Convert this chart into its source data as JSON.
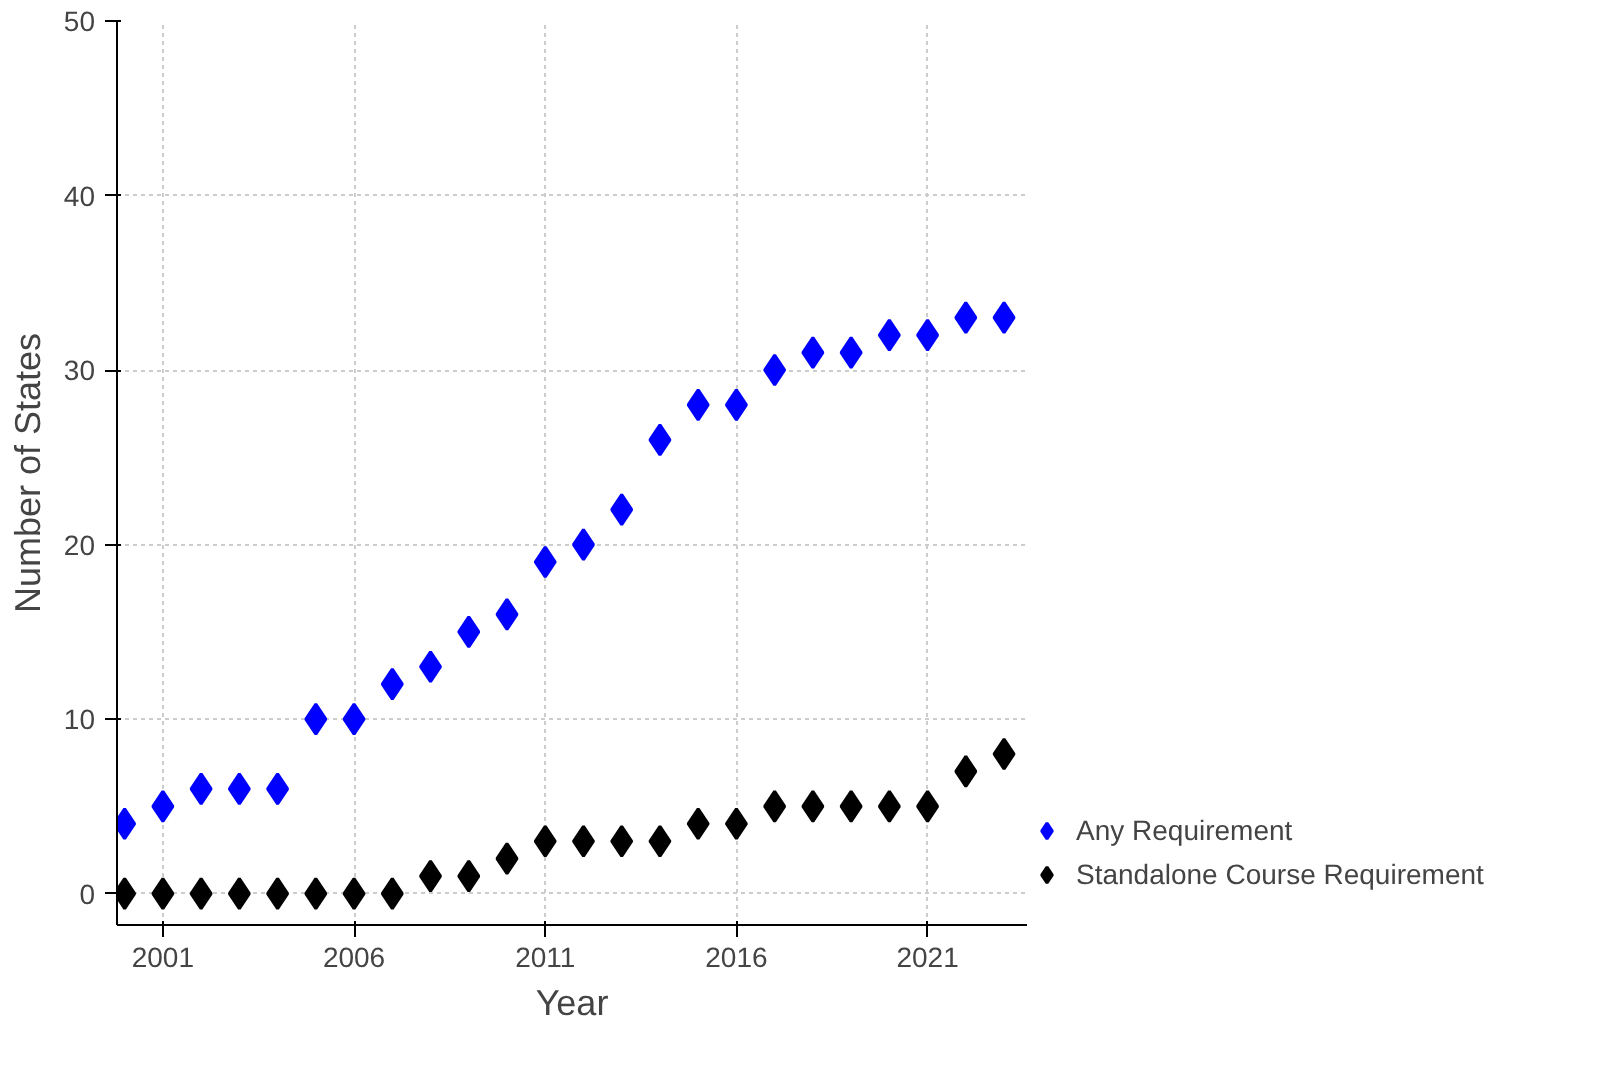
{
  "chart_data": {
    "type": "scatter",
    "xlabel": "Year",
    "ylabel": "Number of States",
    "x": [
      2000,
      2001,
      2002,
      2003,
      2004,
      2005,
      2006,
      2007,
      2008,
      2009,
      2010,
      2011,
      2012,
      2013,
      2014,
      2015,
      2016,
      2017,
      2018,
      2019,
      2020,
      2021,
      2022,
      2023
    ],
    "series": [
      {
        "name": "Any Requirement",
        "color": "#0000ff",
        "values": [
          4,
          5,
          6,
          6,
          6,
          10,
          10,
          12,
          13,
          15,
          16,
          19,
          20,
          22,
          26,
          28,
          28,
          30,
          31,
          31,
          32,
          32,
          33,
          33
        ]
      },
      {
        "name": "Standalone Course Requirement",
        "color": "#000000",
        "values": [
          0,
          0,
          0,
          0,
          0,
          0,
          0,
          0,
          1,
          1,
          2,
          3,
          3,
          3,
          3,
          4,
          4,
          5,
          5,
          5,
          5,
          5,
          7,
          8
        ]
      }
    ],
    "xlim": [
      1999.8,
      2023.6
    ],
    "xticks": [
      2001,
      2006,
      2011,
      2016,
      2021
    ],
    "ylim": [
      -1.8,
      50
    ],
    "yticks": [
      0,
      10,
      20,
      30,
      40,
      50
    ],
    "grid": true,
    "legend": "bottom right",
    "marker": "diamond"
  }
}
